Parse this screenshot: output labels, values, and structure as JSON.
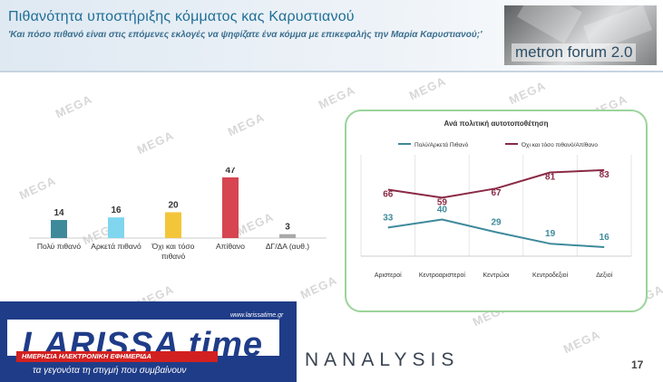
{
  "header": {
    "title": "Πιθανότητα υποστήριξης κόμματος κας Καρυστιανού",
    "subtitle": "'Και πόσο πιθανό είναι στις επόμενες εκλογές να ψηφίζατε ένα κόμμα με επικεφαλής την Μαρία Καρυστιανού;'"
  },
  "logo": {
    "text": "metron forum 2.0"
  },
  "watermark": "MEGA",
  "footer": {
    "brand": "LARISSA time",
    "site": "www.larissatime.gr",
    "subtitle": "ΗΜΕΡΗΣΙΑ ΗΛΕΚΤΡΟΝΙΚΗ ΕΦΗΜΕΡΙΔΑ",
    "tagline": "τα γεγονότα τη στιγμή που συμβαίνουν",
    "agency": "NANALYSIS",
    "page": "17"
  },
  "chart_data": [
    {
      "type": "bar",
      "categories": [
        "Πολύ πιθανό",
        "Αρκετά πιθανό",
        "Όχι και τόσο πιθανό",
        "Απίθανο",
        "ΔΓ/ΔΑ (αυθ.)"
      ],
      "values": [
        14,
        16,
        20,
        47,
        3
      ],
      "colors": [
        "#3e8a9b",
        "#7fd6ee",
        "#f3c63a",
        "#d64550",
        "#a9a9a9"
      ],
      "ylim": [
        0,
        50
      ],
      "grid": false
    },
    {
      "type": "line",
      "title": "Ανά πολιτική αυτοτοποθέτηση",
      "categories": [
        "Αριστεροί",
        "Κεντροαριστεροί",
        "Κεντρώοι",
        "Κεντροδεξιοί",
        "Δεξιοί"
      ],
      "series": [
        {
          "name": "Πολύ/Αρκετά Πιθανό",
          "values": [
            33,
            40,
            29,
            19,
            16
          ],
          "color": "#3e8a9b"
        },
        {
          "name": "Όχι και τόσο πιθανό/Απίθανο",
          "values": [
            66,
            59,
            67,
            81,
            83
          ],
          "color": "#8a2a45"
        }
      ],
      "ylim": [
        0,
        100
      ],
      "grid": true,
      "legend": "top"
    }
  ]
}
